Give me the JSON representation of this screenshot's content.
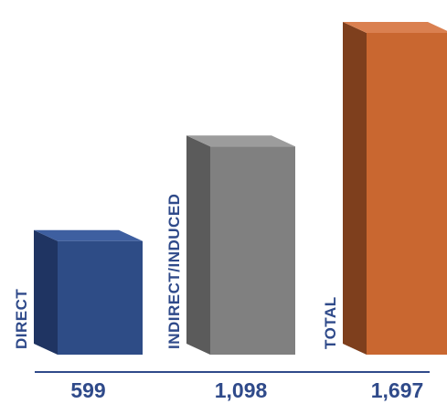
{
  "chart_data": {
    "type": "bar",
    "style": "3d-column",
    "categories": [
      "DIRECT",
      "INDIRECT/INDUCED",
      "TOTAL"
    ],
    "values": [
      599,
      1098,
      1697
    ],
    "value_labels": [
      "599",
      "1,098",
      "1,697"
    ],
    "title": "",
    "xlabel": "",
    "ylabel": "",
    "ylim": [
      0,
      1697
    ],
    "grid": false,
    "legend": "none",
    "colors": {
      "bars": [
        {
          "front": "#2e4c86",
          "side": "#1f3462",
          "top": "#3e5fa0"
        },
        {
          "front": "#808080",
          "side": "#5b5b5b",
          "top": "#9c9c9c"
        },
        {
          "front": "#c96730",
          "side": "#7e3f1d",
          "top": "#da8050"
        }
      ],
      "category_label": "#2f4a8a",
      "value_label": "#2f4a8a",
      "baseline": "#2f4a8a"
    }
  }
}
